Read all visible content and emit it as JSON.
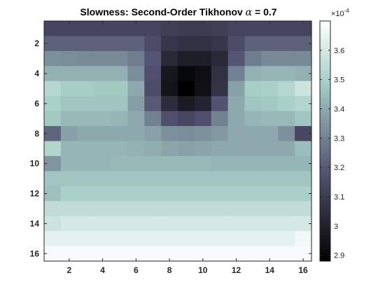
{
  "chart_data": {
    "type": "heatmap",
    "title": "Slowness: Second-Order Tikhonov α = 0.7",
    "colormap": "bone",
    "grid": false,
    "x_ticks": [
      2,
      4,
      6,
      8,
      10,
      12,
      14,
      16
    ],
    "y_ticks": [
      2,
      4,
      6,
      8,
      10,
      12,
      14,
      16
    ],
    "xlim": [
      0.5,
      16.5
    ],
    "ylim": [
      0.5,
      16.5
    ],
    "y_direction": "top-to-bottom",
    "colorbar": {
      "exponent_label": "×10",
      "exponent_power": "-4",
      "range": [
        2.88,
        3.7
      ],
      "ticks": [
        2.9,
        3.0,
        3.1,
        3.2,
        3.3,
        3.4,
        3.5,
        3.6
      ],
      "tick_labels": [
        "2.9",
        "3",
        "3.1",
        "3.2",
        "3.3",
        "3.4",
        "3.5",
        "3.6"
      ]
    },
    "values": [
      [
        3.13,
        3.13,
        3.13,
        3.13,
        3.13,
        3.13,
        3.13,
        3.11,
        3.1,
        3.1,
        3.11,
        3.13,
        3.13,
        3.13,
        3.13,
        3.13
      ],
      [
        3.22,
        3.22,
        3.22,
        3.22,
        3.22,
        3.22,
        3.16,
        3.08,
        3.06,
        3.06,
        3.08,
        3.16,
        3.22,
        3.22,
        3.22,
        3.22
      ],
      [
        3.34,
        3.33,
        3.32,
        3.32,
        3.32,
        3.29,
        3.19,
        3.03,
        2.99,
        2.99,
        3.03,
        3.19,
        3.29,
        3.32,
        3.32,
        3.32
      ],
      [
        3.42,
        3.42,
        3.42,
        3.42,
        3.42,
        3.33,
        3.17,
        2.96,
        2.91,
        2.93,
        3.06,
        3.3,
        3.42,
        3.43,
        3.43,
        3.42
      ],
      [
        3.53,
        3.49,
        3.49,
        3.48,
        3.48,
        3.4,
        3.16,
        2.95,
        2.88,
        2.94,
        3.07,
        3.38,
        3.49,
        3.5,
        3.53,
        3.58
      ],
      [
        3.5,
        3.47,
        3.47,
        3.47,
        3.47,
        3.37,
        3.2,
        3.04,
        2.98,
        3.01,
        3.18,
        3.4,
        3.47,
        3.48,
        3.5,
        3.52
      ],
      [
        3.48,
        3.44,
        3.44,
        3.44,
        3.43,
        3.4,
        3.3,
        3.17,
        3.14,
        3.17,
        3.3,
        3.4,
        3.43,
        3.44,
        3.44,
        3.47
      ],
      [
        3.23,
        3.38,
        3.4,
        3.4,
        3.4,
        3.4,
        3.38,
        3.34,
        3.33,
        3.34,
        3.36,
        3.4,
        3.4,
        3.4,
        3.34,
        3.14
      ],
      [
        3.52,
        3.43,
        3.43,
        3.43,
        3.43,
        3.42,
        3.41,
        3.39,
        3.38,
        3.39,
        3.4,
        3.4,
        3.4,
        3.4,
        3.4,
        3.45
      ],
      [
        3.35,
        3.43,
        3.43,
        3.43,
        3.44,
        3.44,
        3.44,
        3.44,
        3.44,
        3.44,
        3.43,
        3.43,
        3.43,
        3.43,
        3.43,
        3.43
      ],
      [
        3.47,
        3.47,
        3.47,
        3.47,
        3.47,
        3.47,
        3.47,
        3.47,
        3.47,
        3.47,
        3.47,
        3.47,
        3.47,
        3.47,
        3.47,
        3.47
      ],
      [
        3.46,
        3.5,
        3.5,
        3.5,
        3.5,
        3.5,
        3.5,
        3.5,
        3.5,
        3.5,
        3.5,
        3.5,
        3.5,
        3.5,
        3.5,
        3.5
      ],
      [
        3.55,
        3.55,
        3.55,
        3.55,
        3.55,
        3.55,
        3.55,
        3.55,
        3.55,
        3.55,
        3.55,
        3.55,
        3.55,
        3.55,
        3.55,
        3.55
      ],
      [
        3.58,
        3.6,
        3.6,
        3.6,
        3.6,
        3.6,
        3.6,
        3.6,
        3.6,
        3.6,
        3.6,
        3.6,
        3.6,
        3.6,
        3.6,
        3.6
      ],
      [
        3.64,
        3.64,
        3.64,
        3.64,
        3.64,
        3.64,
        3.64,
        3.64,
        3.64,
        3.64,
        3.64,
        3.64,
        3.64,
        3.64,
        3.64,
        3.67
      ],
      [
        3.68,
        3.68,
        3.68,
        3.68,
        3.68,
        3.68,
        3.68,
        3.68,
        3.68,
        3.68,
        3.68,
        3.68,
        3.68,
        3.68,
        3.68,
        3.68
      ]
    ]
  }
}
